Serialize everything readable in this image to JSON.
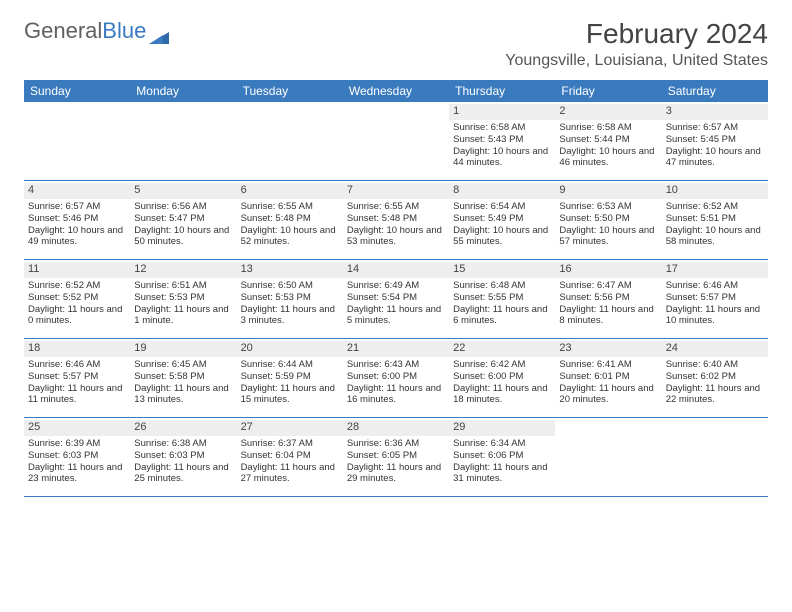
{
  "logo": {
    "part1": "General",
    "part2": "Blue"
  },
  "title": "February 2024",
  "location": "Youngsville, Louisiana, United States",
  "colors": {
    "header_bg": "#3a7bbf",
    "header_text": "#ffffff",
    "daynum_bg": "#eeeeee",
    "text": "#333333",
    "rule": "#3a7bbf",
    "page_bg": "#ffffff"
  },
  "fonts": {
    "title_size": 28,
    "location_size": 16,
    "dow_size": 12,
    "body_size": 9.5
  },
  "dow": [
    "Sunday",
    "Monday",
    "Tuesday",
    "Wednesday",
    "Thursday",
    "Friday",
    "Saturday"
  ],
  "weeks": [
    [
      {
        "n": "",
        "sr": "",
        "ss": "",
        "dl": ""
      },
      {
        "n": "",
        "sr": "",
        "ss": "",
        "dl": ""
      },
      {
        "n": "",
        "sr": "",
        "ss": "",
        "dl": ""
      },
      {
        "n": "",
        "sr": "",
        "ss": "",
        "dl": ""
      },
      {
        "n": "1",
        "sr": "Sunrise: 6:58 AM",
        "ss": "Sunset: 5:43 PM",
        "dl": "Daylight: 10 hours and 44 minutes."
      },
      {
        "n": "2",
        "sr": "Sunrise: 6:58 AM",
        "ss": "Sunset: 5:44 PM",
        "dl": "Daylight: 10 hours and 46 minutes."
      },
      {
        "n": "3",
        "sr": "Sunrise: 6:57 AM",
        "ss": "Sunset: 5:45 PM",
        "dl": "Daylight: 10 hours and 47 minutes."
      }
    ],
    [
      {
        "n": "4",
        "sr": "Sunrise: 6:57 AM",
        "ss": "Sunset: 5:46 PM",
        "dl": "Daylight: 10 hours and 49 minutes."
      },
      {
        "n": "5",
        "sr": "Sunrise: 6:56 AM",
        "ss": "Sunset: 5:47 PM",
        "dl": "Daylight: 10 hours and 50 minutes."
      },
      {
        "n": "6",
        "sr": "Sunrise: 6:55 AM",
        "ss": "Sunset: 5:48 PM",
        "dl": "Daylight: 10 hours and 52 minutes."
      },
      {
        "n": "7",
        "sr": "Sunrise: 6:55 AM",
        "ss": "Sunset: 5:48 PM",
        "dl": "Daylight: 10 hours and 53 minutes."
      },
      {
        "n": "8",
        "sr": "Sunrise: 6:54 AM",
        "ss": "Sunset: 5:49 PM",
        "dl": "Daylight: 10 hours and 55 minutes."
      },
      {
        "n": "9",
        "sr": "Sunrise: 6:53 AM",
        "ss": "Sunset: 5:50 PM",
        "dl": "Daylight: 10 hours and 57 minutes."
      },
      {
        "n": "10",
        "sr": "Sunrise: 6:52 AM",
        "ss": "Sunset: 5:51 PM",
        "dl": "Daylight: 10 hours and 58 minutes."
      }
    ],
    [
      {
        "n": "11",
        "sr": "Sunrise: 6:52 AM",
        "ss": "Sunset: 5:52 PM",
        "dl": "Daylight: 11 hours and 0 minutes."
      },
      {
        "n": "12",
        "sr": "Sunrise: 6:51 AM",
        "ss": "Sunset: 5:53 PM",
        "dl": "Daylight: 11 hours and 1 minute."
      },
      {
        "n": "13",
        "sr": "Sunrise: 6:50 AM",
        "ss": "Sunset: 5:53 PM",
        "dl": "Daylight: 11 hours and 3 minutes."
      },
      {
        "n": "14",
        "sr": "Sunrise: 6:49 AM",
        "ss": "Sunset: 5:54 PM",
        "dl": "Daylight: 11 hours and 5 minutes."
      },
      {
        "n": "15",
        "sr": "Sunrise: 6:48 AM",
        "ss": "Sunset: 5:55 PM",
        "dl": "Daylight: 11 hours and 6 minutes."
      },
      {
        "n": "16",
        "sr": "Sunrise: 6:47 AM",
        "ss": "Sunset: 5:56 PM",
        "dl": "Daylight: 11 hours and 8 minutes."
      },
      {
        "n": "17",
        "sr": "Sunrise: 6:46 AM",
        "ss": "Sunset: 5:57 PM",
        "dl": "Daylight: 11 hours and 10 minutes."
      }
    ],
    [
      {
        "n": "18",
        "sr": "Sunrise: 6:46 AM",
        "ss": "Sunset: 5:57 PM",
        "dl": "Daylight: 11 hours and 11 minutes."
      },
      {
        "n": "19",
        "sr": "Sunrise: 6:45 AM",
        "ss": "Sunset: 5:58 PM",
        "dl": "Daylight: 11 hours and 13 minutes."
      },
      {
        "n": "20",
        "sr": "Sunrise: 6:44 AM",
        "ss": "Sunset: 5:59 PM",
        "dl": "Daylight: 11 hours and 15 minutes."
      },
      {
        "n": "21",
        "sr": "Sunrise: 6:43 AM",
        "ss": "Sunset: 6:00 PM",
        "dl": "Daylight: 11 hours and 16 minutes."
      },
      {
        "n": "22",
        "sr": "Sunrise: 6:42 AM",
        "ss": "Sunset: 6:00 PM",
        "dl": "Daylight: 11 hours and 18 minutes."
      },
      {
        "n": "23",
        "sr": "Sunrise: 6:41 AM",
        "ss": "Sunset: 6:01 PM",
        "dl": "Daylight: 11 hours and 20 minutes."
      },
      {
        "n": "24",
        "sr": "Sunrise: 6:40 AM",
        "ss": "Sunset: 6:02 PM",
        "dl": "Daylight: 11 hours and 22 minutes."
      }
    ],
    [
      {
        "n": "25",
        "sr": "Sunrise: 6:39 AM",
        "ss": "Sunset: 6:03 PM",
        "dl": "Daylight: 11 hours and 23 minutes."
      },
      {
        "n": "26",
        "sr": "Sunrise: 6:38 AM",
        "ss": "Sunset: 6:03 PM",
        "dl": "Daylight: 11 hours and 25 minutes."
      },
      {
        "n": "27",
        "sr": "Sunrise: 6:37 AM",
        "ss": "Sunset: 6:04 PM",
        "dl": "Daylight: 11 hours and 27 minutes."
      },
      {
        "n": "28",
        "sr": "Sunrise: 6:36 AM",
        "ss": "Sunset: 6:05 PM",
        "dl": "Daylight: 11 hours and 29 minutes."
      },
      {
        "n": "29",
        "sr": "Sunrise: 6:34 AM",
        "ss": "Sunset: 6:06 PM",
        "dl": "Daylight: 11 hours and 31 minutes."
      },
      {
        "n": "",
        "sr": "",
        "ss": "",
        "dl": ""
      },
      {
        "n": "",
        "sr": "",
        "ss": "",
        "dl": ""
      }
    ]
  ]
}
